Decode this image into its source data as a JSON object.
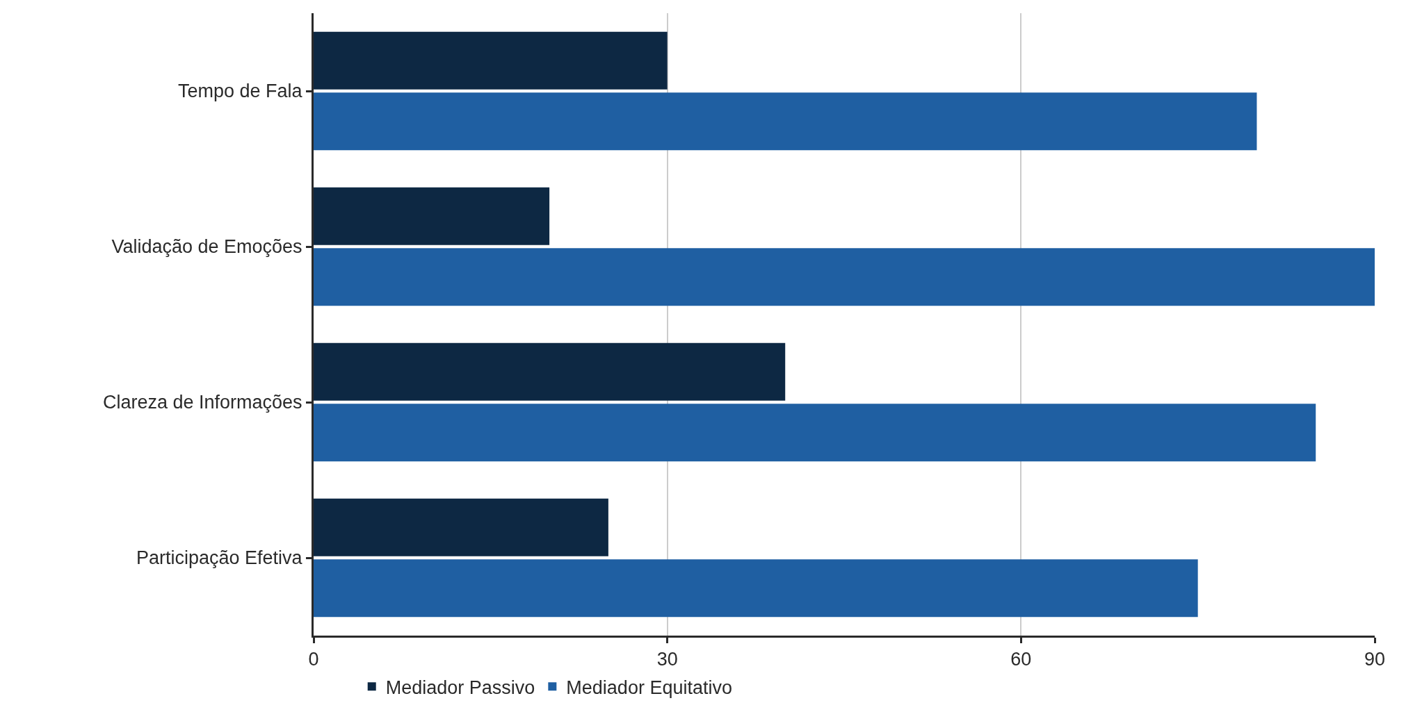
{
  "chart_data": {
    "type": "bar",
    "orientation": "horizontal",
    "categories": [
      "Tempo de Fala",
      "Validação de Emoções",
      "Clareza de Informações",
      "Participação Efetiva"
    ],
    "series": [
      {
        "name": "Mediador Passivo",
        "color": "#0d2843",
        "values": [
          30,
          20,
          40,
          25
        ]
      },
      {
        "name": "Mediador Equitativo",
        "color": "#1f5fa2",
        "values": [
          80,
          90,
          85,
          75
        ]
      }
    ],
    "xlim": [
      0,
      90
    ],
    "xticks": [
      0,
      30,
      60,
      90
    ],
    "grid": "x",
    "legend": "bottom"
  }
}
